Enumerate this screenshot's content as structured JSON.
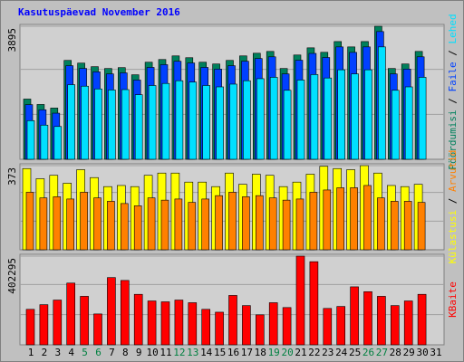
{
  "chart_data": [
    {
      "type": "bar",
      "title": "Kasutuspäevad November 2016",
      "separator": " / ",
      "ylim": [
        0,
        3895
      ],
      "yticks": [
        3895
      ],
      "series": [
        {
          "name": "Pöördumisi",
          "color": "#00805c",
          "values": [
            1763,
            1605,
            1500,
            2895,
            2816,
            2711,
            2658,
            2684,
            2474,
            2842,
            2921,
            3027,
            2974,
            2842,
            2790,
            2895,
            3027,
            3105,
            3158,
            2658,
            3053,
            3263,
            3132,
            3447,
            3290,
            3447,
            3895,
            2658,
            2790,
            3158,
            null
          ]
        },
        {
          "name": "Faile",
          "color": "#0040ff",
          "values": [
            1600,
            1450,
            1350,
            2740,
            2660,
            2560,
            2500,
            2530,
            2320,
            2690,
            2770,
            2870,
            2820,
            2690,
            2640,
            2740,
            2870,
            2950,
            3000,
            2500,
            2900,
            3100,
            2980,
            3290,
            3130,
            3290,
            3740,
            2500,
            2640,
            3000,
            null
          ]
        },
        {
          "name": "Lehed",
          "color": "#00e0ff",
          "values": [
            1132,
            1000,
            960,
            2184,
            2140,
            2060,
            2030,
            2040,
            1890,
            2160,
            2220,
            2300,
            2260,
            2160,
            2120,
            2200,
            2300,
            2360,
            2400,
            2020,
            2320,
            2480,
            2380,
            2620,
            2500,
            2620,
            3290,
            2020,
            2120,
            2400,
            null
          ]
        }
      ]
    },
    {
      "type": "bar",
      "ylim": [
        0,
        373
      ],
      "yticks": [
        373
      ],
      "series": [
        {
          "name": "Külastusi",
          "color": "#ffff00",
          "values": [
            360,
            315,
            330,
            295,
            355,
            320,
            280,
            285,
            280,
            330,
            340,
            340,
            300,
            300,
            280,
            340,
            290,
            335,
            330,
            280,
            300,
            335,
            370,
            360,
            355,
            373,
            340,
            285,
            280,
            290,
            null
          ]
        },
        {
          "name": "Arvutid",
          "color": "#ff8000",
          "values": [
            255,
            230,
            235,
            225,
            255,
            230,
            215,
            205,
            195,
            230,
            220,
            225,
            210,
            225,
            240,
            255,
            235,
            240,
            230,
            220,
            225,
            255,
            265,
            275,
            275,
            285,
            230,
            215,
            215,
            210,
            null
          ]
        }
      ]
    },
    {
      "type": "bar",
      "ylim": [
        0,
        402295
      ],
      "yticks": [
        402295
      ],
      "categories": [
        1,
        2,
        3,
        4,
        5,
        6,
        7,
        8,
        9,
        10,
        11,
        12,
        13,
        14,
        15,
        16,
        17,
        18,
        19,
        20,
        21,
        22,
        23,
        24,
        25,
        26,
        27,
        28,
        29,
        30,
        31
      ],
      "category_colors": [
        "#000000",
        "#000000",
        "#000000",
        "#000000",
        "#008040",
        "#008040",
        "#000000",
        "#000000",
        "#000000",
        "#000000",
        "#000000",
        "#008040",
        "#008040",
        "#000000",
        "#000000",
        "#000000",
        "#000000",
        "#000000",
        "#008040",
        "#008040",
        "#000000",
        "#000000",
        "#000000",
        "#000000",
        "#000000",
        "#008040",
        "#008040",
        "#000000",
        "#000000",
        "#000000",
        "#000000"
      ],
      "series": [
        {
          "name": "KBaite",
          "color": "#ff0000",
          "values": [
            161000,
            182000,
            203000,
            280000,
            220000,
            140000,
            305000,
            292000,
            229000,
            199000,
            195000,
            203000,
            191000,
            161000,
            148000,
            224000,
            178000,
            136000,
            191000,
            169000,
            402295,
            377000,
            165000,
            174000,
            263000,
            241000,
            220000,
            178000,
            199000,
            229000,
            null
          ]
        }
      ]
    }
  ]
}
